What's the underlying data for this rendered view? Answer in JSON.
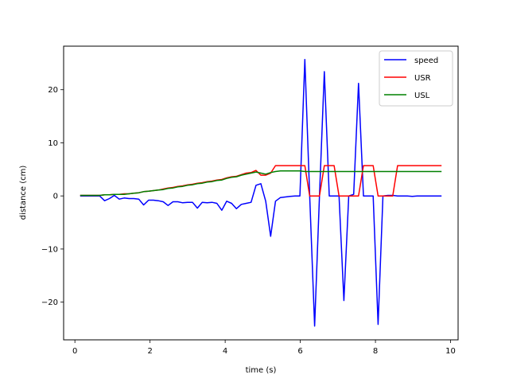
{
  "chart_data": {
    "type": "line",
    "xlabel": "time (s)",
    "ylabel": "distance (cm)",
    "xlim": [
      -0.3,
      10.2
    ],
    "ylim": [
      -27.1,
      28.2
    ],
    "xticks": [
      0,
      2,
      4,
      6,
      8,
      10
    ],
    "yticks": [
      -20,
      -10,
      0,
      10,
      20
    ],
    "xtick_labels": [
      "0",
      "2",
      "4",
      "6",
      "8",
      "10"
    ],
    "ytick_labels": [
      "−20",
      "−10",
      "0",
      "10",
      "20"
    ],
    "grid": false,
    "legend_position": "top-right",
    "x": [
      0.14,
      0.27,
      0.4,
      0.53,
      0.66,
      0.79,
      0.92,
      1.05,
      1.18,
      1.31,
      1.44,
      1.57,
      1.7,
      1.83,
      1.96,
      2.09,
      2.22,
      2.35,
      2.48,
      2.61,
      2.74,
      2.87,
      3.0,
      3.13,
      3.26,
      3.39,
      3.52,
      3.65,
      3.78,
      3.91,
      4.04,
      4.17,
      4.3,
      4.43,
      4.56,
      4.69,
      4.82,
      4.95,
      5.08,
      5.21,
      5.34,
      5.47,
      5.6,
      5.73,
      5.86,
      5.99,
      6.12,
      6.25,
      6.38,
      6.51,
      6.64,
      6.77,
      6.9,
      7.03,
      7.16,
      7.29,
      7.42,
      7.55,
      7.68,
      7.81,
      7.94,
      8.07,
      8.2,
      8.33,
      8.46,
      8.59,
      8.72,
      8.85,
      8.98,
      9.11,
      9.24,
      9.37,
      9.5,
      9.63,
      9.76
    ],
    "series": [
      {
        "name": "speed",
        "color": "#0000ff",
        "values": [
          0,
          0,
          0,
          0,
          0,
          -0.9,
          -0.5,
          0.1,
          -0.6,
          -0.4,
          -0.5,
          -0.5,
          -0.6,
          -1.7,
          -0.8,
          -0.8,
          -0.9,
          -1.1,
          -1.8,
          -1.1,
          -1.1,
          -1.3,
          -1.2,
          -1.2,
          -2.3,
          -1.2,
          -1.3,
          -1.2,
          -1.4,
          -2.7,
          -1.0,
          -1.4,
          -2.4,
          -1.6,
          -1.4,
          -1.2,
          2.0,
          2.3,
          -1.0,
          -7.6,
          -1.0,
          -0.3,
          -0.2,
          -0.1,
          0,
          0,
          25.7,
          0,
          -24.5,
          0,
          23.4,
          0,
          0,
          0,
          -19.7,
          0,
          0.3,
          21.2,
          0,
          0,
          0,
          -24.2,
          0,
          0.1,
          0.1,
          0,
          0,
          0,
          -0.1,
          0,
          0,
          0,
          0,
          0,
          0
        ]
      },
      {
        "name": "USR",
        "color": "#ff0000",
        "values": [
          0.1,
          0.1,
          0.1,
          0.1,
          0.1,
          0.2,
          0.2,
          0.3,
          0.3,
          0.4,
          0.4,
          0.5,
          0.6,
          0.8,
          0.9,
          1.0,
          1.1,
          1.3,
          1.5,
          1.6,
          1.8,
          1.9,
          2.1,
          2.2,
          2.4,
          2.5,
          2.7,
          2.8,
          3.0,
          3.1,
          3.4,
          3.6,
          3.7,
          4.0,
          4.3,
          4.4,
          4.8,
          3.9,
          3.9,
          4.3,
          5.7,
          5.7,
          5.7,
          5.7,
          5.7,
          5.7,
          5.7,
          0,
          0,
          0,
          5.7,
          5.7,
          5.7,
          0,
          0,
          0,
          0,
          0,
          5.7,
          5.7,
          5.7,
          0,
          0,
          0,
          0,
          5.7,
          5.7,
          5.7,
          5.7,
          5.7,
          5.7,
          5.7,
          5.7,
          5.7,
          5.7
        ]
      },
      {
        "name": "USL",
        "color": "#008000",
        "values": [
          0.1,
          0.1,
          0.1,
          0.1,
          0.1,
          0.2,
          0.2,
          0.3,
          0.3,
          0.3,
          0.4,
          0.5,
          0.6,
          0.8,
          0.9,
          1.0,
          1.1,
          1.2,
          1.4,
          1.5,
          1.7,
          1.8,
          2.0,
          2.1,
          2.3,
          2.4,
          2.6,
          2.7,
          2.9,
          3.0,
          3.3,
          3.5,
          3.6,
          3.9,
          4.1,
          4.3,
          4.5,
          4.3,
          4.1,
          4.4,
          4.6,
          4.7,
          4.7,
          4.7,
          4.7,
          4.7,
          4.6,
          4.6,
          4.6,
          4.6,
          4.6,
          4.6,
          4.6,
          4.6,
          4.6,
          4.6,
          4.6,
          4.6,
          4.6,
          4.6,
          4.6,
          4.6,
          4.6,
          4.6,
          4.6,
          4.6,
          4.6,
          4.6,
          4.6,
          4.6,
          4.6,
          4.6,
          4.6,
          4.6,
          4.6
        ]
      }
    ]
  }
}
